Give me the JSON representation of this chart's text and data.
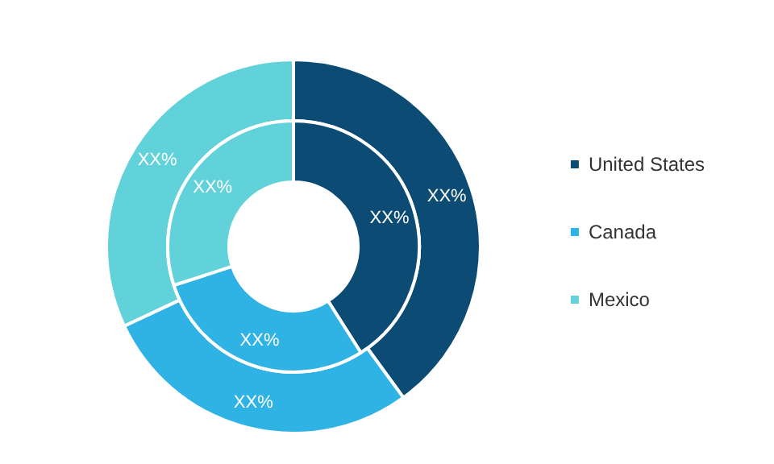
{
  "chart_data": {
    "type": "donut",
    "categories": [
      "United States",
      "Canada",
      "Mexico"
    ],
    "colors": [
      "#0c4c74",
      "#2fb2e4",
      "#62d2da"
    ],
    "series": [
      {
        "values": [
          40,
          28,
          32
        ],
        "value_labels": [
          "XX%",
          "XX%",
          "XX%"
        ]
      },
      {
        "values": [
          41,
          29,
          30
        ],
        "value_labels": [
          "XX%",
          "XX%",
          "XX%"
        ]
      }
    ],
    "legend": "right"
  }
}
